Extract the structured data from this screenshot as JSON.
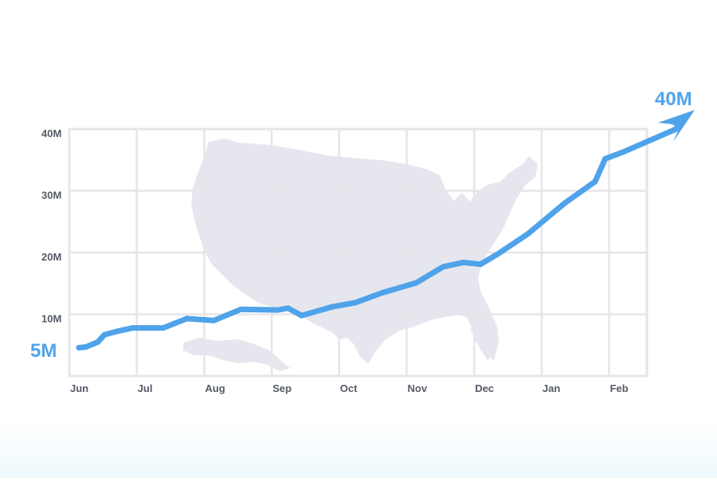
{
  "colors": {
    "accent": "#4fa3ea",
    "grid": "#e5e5ea",
    "map": "#e6e6ee",
    "tick_text": "#555a66"
  },
  "icons": {
    "end_marker": "paper-plane-icon",
    "background": "usa-map-silhouette"
  },
  "chart_data": {
    "type": "line",
    "title": "",
    "xlabel": "",
    "ylabel": "",
    "categories": [
      "Jun",
      "Jul",
      "Aug",
      "Sep",
      "Oct",
      "Nov",
      "Dec",
      "Jan",
      "Feb"
    ],
    "y_ticks": [
      "10M",
      "20M",
      "30M",
      "40M"
    ],
    "ylim": [
      0,
      40
    ],
    "xlim": [
      0,
      8.5
    ],
    "grid": true,
    "x": [
      0,
      0.1,
      0.28,
      0.38,
      0.55,
      0.8,
      1.25,
      1.6,
      2.0,
      2.4,
      2.95,
      3.1,
      3.3,
      3.75,
      4.1,
      4.5,
      4.75,
      5.0,
      5.4,
      5.7,
      5.95,
      6.2,
      6.65,
      7.2,
      7.65,
      7.8,
      8.05,
      8.85
    ],
    "series": [
      {
        "values": [
          4.6,
          4.7,
          5.5,
          6.7,
          7.2,
          7.8,
          7.8,
          9.3,
          9.0,
          10.8,
          10.7,
          11.0,
          9.8,
          11.2,
          11.9,
          13.5,
          14.3,
          15.1,
          17.7,
          18.4,
          18.1,
          19.7,
          23.0,
          28.0,
          31.5,
          35.2,
          36.2,
          40.0
        ]
      }
    ],
    "callouts": {
      "start": "5M",
      "end": "40M"
    }
  }
}
